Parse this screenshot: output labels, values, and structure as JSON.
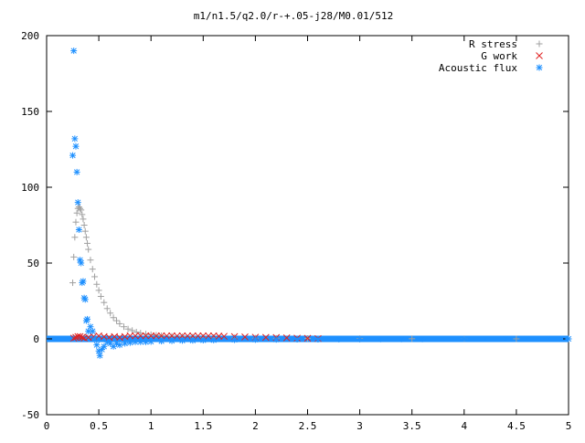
{
  "chart_data": {
    "type": "scatter",
    "title": "m1/n1.5/q2.0/r-+.05-j28/M0.01/512",
    "xlabel": "",
    "ylabel": "",
    "xlim": [
      0,
      5
    ],
    "ylim": [
      -50,
      200
    ],
    "x_ticks": [
      "0",
      "0.5",
      "1",
      "1.5",
      "2",
      "2.5",
      "3",
      "3.5",
      "4",
      "4.5",
      "5"
    ],
    "y_ticks": [
      "-50",
      "0",
      "50",
      "100",
      "150",
      "200"
    ],
    "grid": false,
    "legend_position": "top-right",
    "series": [
      {
        "name": "R stress",
        "marker": "plus",
        "color": "#a0a0a0",
        "points": [
          [
            0.25,
            37
          ],
          [
            0.26,
            54
          ],
          [
            0.27,
            67
          ],
          [
            0.28,
            77
          ],
          [
            0.29,
            83
          ],
          [
            0.3,
            86
          ],
          [
            0.31,
            87
          ],
          [
            0.32,
            86
          ],
          [
            0.33,
            85
          ],
          [
            0.34,
            82
          ],
          [
            0.35,
            79
          ],
          [
            0.36,
            75
          ],
          [
            0.37,
            71
          ],
          [
            0.38,
            67
          ],
          [
            0.39,
            63
          ],
          [
            0.4,
            59
          ],
          [
            0.42,
            52
          ],
          [
            0.44,
            46
          ],
          [
            0.46,
            41
          ],
          [
            0.48,
            36
          ],
          [
            0.5,
            32
          ],
          [
            0.52,
            28
          ],
          [
            0.55,
            24
          ],
          [
            0.58,
            20
          ],
          [
            0.61,
            17
          ],
          [
            0.64,
            14
          ],
          [
            0.67,
            12
          ],
          [
            0.7,
            10
          ],
          [
            0.74,
            8
          ],
          [
            0.78,
            6.5
          ],
          [
            0.82,
            5.5
          ],
          [
            0.86,
            4.5
          ],
          [
            0.9,
            3.8
          ],
          [
            0.95,
            3.2
          ],
          [
            1.0,
            2.8
          ],
          [
            1.05,
            2.4
          ],
          [
            1.1,
            2.1
          ],
          [
            1.2,
            1.7
          ],
          [
            1.3,
            1.4
          ],
          [
            1.4,
            1.2
          ],
          [
            1.5,
            1.0
          ],
          [
            1.6,
            0.9
          ],
          [
            1.8,
            0.7
          ],
          [
            2.0,
            0.5
          ],
          [
            2.2,
            0.4
          ],
          [
            2.5,
            0.3
          ],
          [
            3.0,
            0.2
          ],
          [
            3.5,
            0.1
          ],
          [
            4.0,
            0.05
          ],
          [
            4.5,
            0.02
          ],
          [
            5.0,
            0
          ]
        ]
      },
      {
        "name": "G work",
        "marker": "cross",
        "color": "#e02020",
        "points": [
          [
            0.26,
            0.5
          ],
          [
            0.28,
            1
          ],
          [
            0.3,
            1.5
          ],
          [
            0.32,
            1.5
          ],
          [
            0.34,
            1
          ],
          [
            0.36,
            0.5
          ],
          [
            0.4,
            1
          ],
          [
            0.45,
            1.5
          ],
          [
            0.5,
            2
          ],
          [
            0.55,
            1.5
          ],
          [
            0.6,
            1
          ],
          [
            0.65,
            1.5
          ],
          [
            0.7,
            1
          ],
          [
            0.75,
            1.5
          ],
          [
            0.8,
            2
          ],
          [
            0.85,
            2
          ],
          [
            0.9,
            2
          ],
          [
            0.95,
            2
          ],
          [
            1.0,
            2
          ],
          [
            1.05,
            2
          ],
          [
            1.1,
            2
          ],
          [
            1.15,
            2
          ],
          [
            1.2,
            2
          ],
          [
            1.25,
            2
          ],
          [
            1.3,
            2
          ],
          [
            1.35,
            2
          ],
          [
            1.4,
            2
          ],
          [
            1.45,
            2
          ],
          [
            1.5,
            2
          ],
          [
            1.55,
            2
          ],
          [
            1.6,
            2
          ],
          [
            1.65,
            1.8
          ],
          [
            1.7,
            1.7
          ],
          [
            1.8,
            1.5
          ],
          [
            1.9,
            1.3
          ],
          [
            2.0,
            1.1
          ],
          [
            2.1,
            1.0
          ],
          [
            2.2,
            0.9
          ],
          [
            2.3,
            0.7
          ],
          [
            2.4,
            0.5
          ],
          [
            2.5,
            0.4
          ],
          [
            2.6,
            0.2
          ]
        ]
      },
      {
        "name": "Acoustic flux",
        "marker": "star",
        "color": "#1e90ff",
        "points": [
          [
            0.25,
            121
          ],
          [
            0.26,
            190
          ],
          [
            0.27,
            132
          ],
          [
            0.28,
            127
          ],
          [
            0.29,
            110
          ],
          [
            0.3,
            90
          ],
          [
            0.31,
            72
          ],
          [
            0.32,
            52
          ],
          [
            0.33,
            50
          ],
          [
            0.34,
            37
          ],
          [
            0.35,
            38
          ],
          [
            0.36,
            27
          ],
          [
            0.37,
            26
          ],
          [
            0.38,
            12
          ],
          [
            0.39,
            13
          ],
          [
            0.4,
            5
          ],
          [
            0.42,
            8
          ],
          [
            0.44,
            5
          ],
          [
            0.46,
            0
          ],
          [
            0.48,
            -4
          ],
          [
            0.5,
            -8
          ],
          [
            0.51,
            -11
          ],
          [
            0.53,
            -7
          ],
          [
            0.55,
            -5
          ],
          [
            0.58,
            -2
          ],
          [
            0.61,
            -3
          ],
          [
            0.64,
            -5
          ],
          [
            0.67,
            -3
          ],
          [
            0.7,
            -4
          ],
          [
            0.75,
            -3
          ],
          [
            0.8,
            -2.5
          ],
          [
            0.85,
            -2
          ],
          [
            0.9,
            -2
          ],
          [
            0.95,
            -2
          ],
          [
            1.0,
            -1.8
          ],
          [
            1.1,
            -1.5
          ],
          [
            1.2,
            -1.3
          ],
          [
            1.3,
            -1.1
          ],
          [
            1.4,
            -1
          ],
          [
            1.5,
            -0.9
          ],
          [
            1.6,
            -0.8
          ],
          [
            1.8,
            -0.6
          ],
          [
            2.0,
            -0.5
          ],
          [
            2.2,
            -0.4
          ],
          [
            2.4,
            -0.3
          ],
          [
            2.6,
            -0.3
          ],
          [
            2.8,
            -0.2
          ],
          [
            3.0,
            -0.2
          ],
          [
            3.2,
            -0.1
          ],
          [
            3.4,
            -0.1
          ],
          [
            3.6,
            -0.1
          ],
          [
            3.8,
            0
          ],
          [
            4.0,
            0
          ],
          [
            4.2,
            0
          ],
          [
            4.4,
            0
          ],
          [
            4.6,
            0
          ],
          [
            4.8,
            0
          ],
          [
            5.0,
            0
          ]
        ]
      }
    ]
  }
}
